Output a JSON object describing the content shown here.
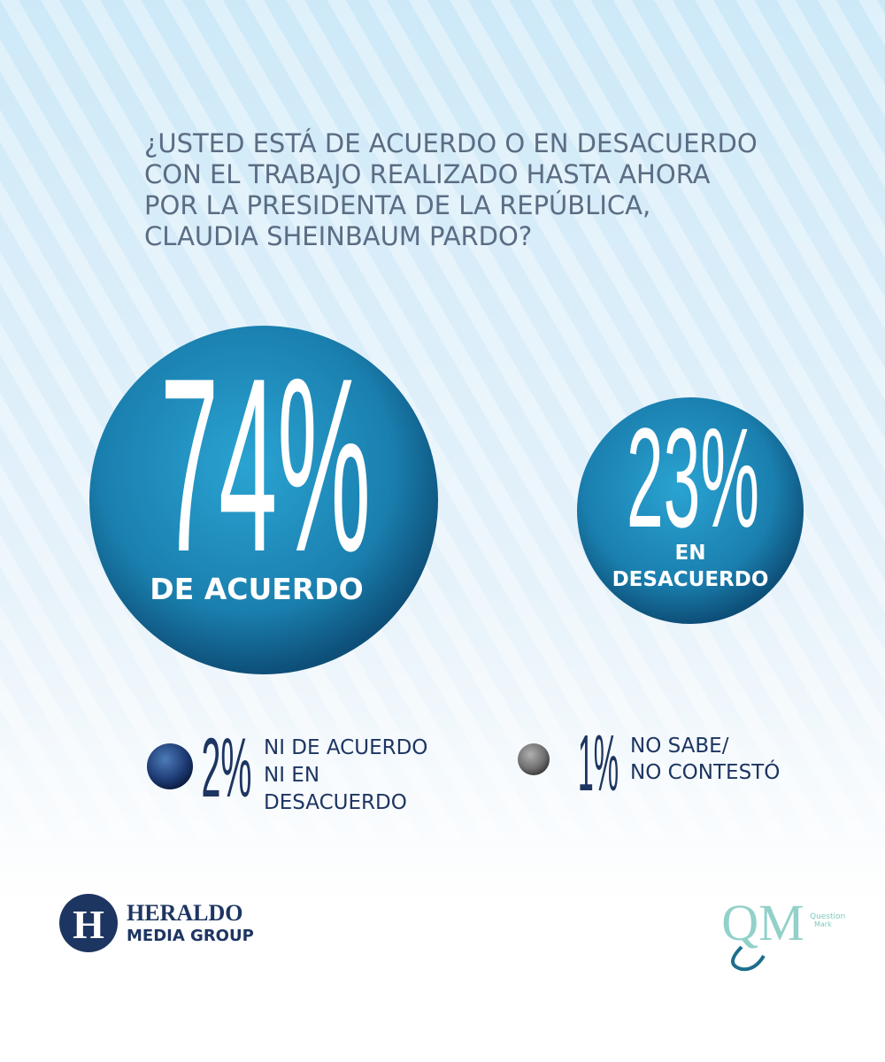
{
  "question": {
    "lines": [
      "¿USTED ESTÁ DE ACUERDO O EN DESACUERDO",
      "CON EL TRABAJO REALIZADO HASTA AHORA",
      "POR LA PRESIDENTA DE LA REPÚBLICA,",
      "CLAUDIA SHEINBAUM PARDO?"
    ]
  },
  "results": [
    {
      "percent": "74%",
      "label_lines": [
        "DE ACUERDO"
      ]
    },
    {
      "percent": "23%",
      "label_lines": [
        "EN",
        "DESACUERDO"
      ]
    },
    {
      "percent": "2%",
      "label_lines": [
        "NI DE ACUERDO",
        "NI EN",
        "DESACUERDO"
      ]
    },
    {
      "percent": "1%",
      "label_lines": [
        "NO SABE/",
        "NO CONTESTÓ"
      ]
    }
  ],
  "footer": {
    "heraldo": {
      "icon": "H",
      "line1": "HERALDO",
      "line2": "MEDIA GROUP"
    },
    "question_mark": {
      "icon": "QM",
      "line1": "Question",
      "line2": "Mark"
    }
  }
}
